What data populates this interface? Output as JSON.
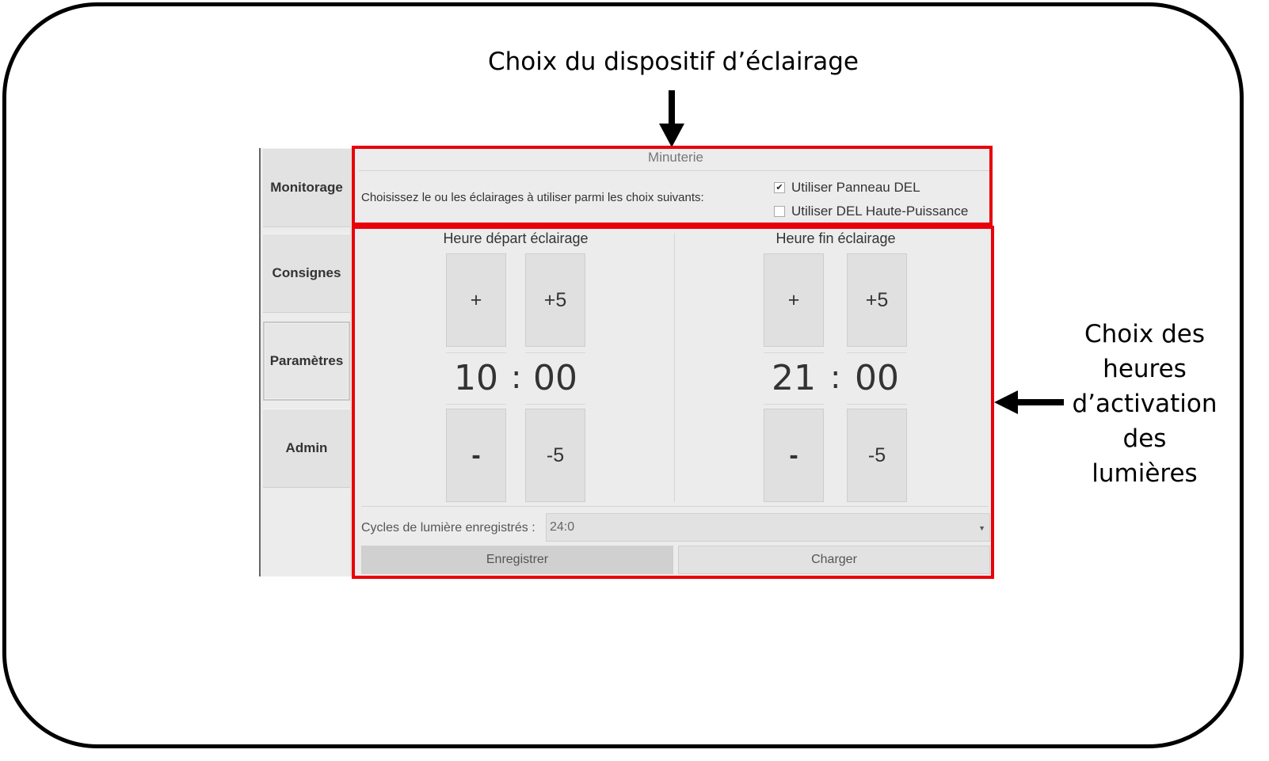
{
  "annotations": {
    "top_label": "Choix du dispositif d’éclairage",
    "side_label_lines": [
      "Choix des",
      "heures",
      "d’activation",
      "des",
      "lumières"
    ],
    "highlight_color": "#e8000b"
  },
  "sidebar": {
    "items": [
      {
        "label": "Monitorage",
        "active": false
      },
      {
        "label": "Consignes",
        "active": false
      },
      {
        "label": "Paramètres",
        "active": true
      },
      {
        "label": "Admin",
        "active": false
      }
    ]
  },
  "panel": {
    "title": "Minuterie",
    "choose_text": "Choisissez le ou les éclairages à utiliser parmi les choix suivants:",
    "options": [
      {
        "label": "Utiliser Panneau DEL",
        "checked": true
      },
      {
        "label": "Utiliser DEL Haute-Puissance",
        "checked": false
      }
    ]
  },
  "start": {
    "heading": "Heure départ éclairage",
    "hour": "10",
    "minute": "00",
    "sep": ":",
    "hour_up": "+",
    "minute_up": "+5",
    "hour_down": "-",
    "minute_down": "-5"
  },
  "end": {
    "heading": "Heure fin éclairage",
    "hour": "21",
    "minute": "00",
    "sep": ":",
    "hour_up": "+",
    "minute_up": "+5",
    "hour_down": "-",
    "minute_down": "-5"
  },
  "cycles": {
    "label": "Cycles de lumière enregistrés :",
    "selected": "24:0"
  },
  "actions": {
    "save": "Enregistrer",
    "load": "Charger"
  }
}
